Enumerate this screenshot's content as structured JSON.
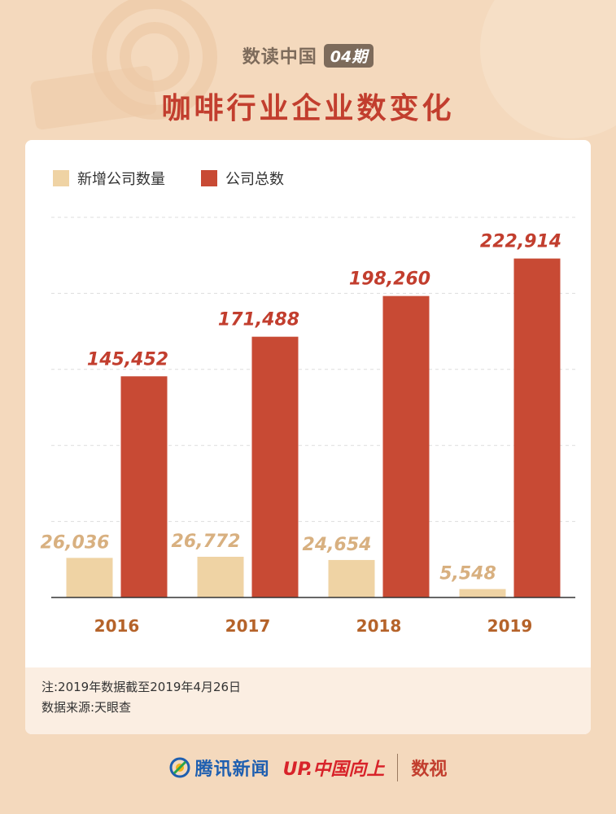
{
  "header": {
    "tag_text": "数读中国",
    "tag_issue": "04期",
    "title": "咖啡行业企业数变化"
  },
  "colors": {
    "new_companies": "#efd3a4",
    "total_companies": "#c84a34",
    "new_label": "#d8b080",
    "total_label": "#c23e2e",
    "year_label": "#b5632a"
  },
  "legend": [
    {
      "label": "新增公司数量",
      "color": "#efd3a4"
    },
    {
      "label": "公司总数",
      "color": "#c84a34"
    }
  ],
  "chart_data": {
    "type": "bar",
    "categories": [
      "2016",
      "2017",
      "2018",
      "2019"
    ],
    "series": [
      {
        "name": "新增公司数量",
        "values": [
          26036,
          26772,
          24654,
          5548
        ],
        "labels": [
          "26,036",
          "26,772",
          "24,654",
          "5,548"
        ]
      },
      {
        "name": "公司总数",
        "values": [
          145452,
          171488,
          198260,
          222914
        ],
        "labels": [
          "145,452",
          "171,488",
          "198,260",
          "222,914"
        ]
      }
    ],
    "ylim": [
      0,
      250000
    ],
    "grid": true,
    "legend_position": "top-left"
  },
  "notes": {
    "note": "注:2019年数据截至2019年4月26日",
    "source": "数据来源:天眼查"
  },
  "footer": {
    "tencent": "腾讯新闻",
    "up": "UP.中国向上",
    "shu": "数视"
  }
}
